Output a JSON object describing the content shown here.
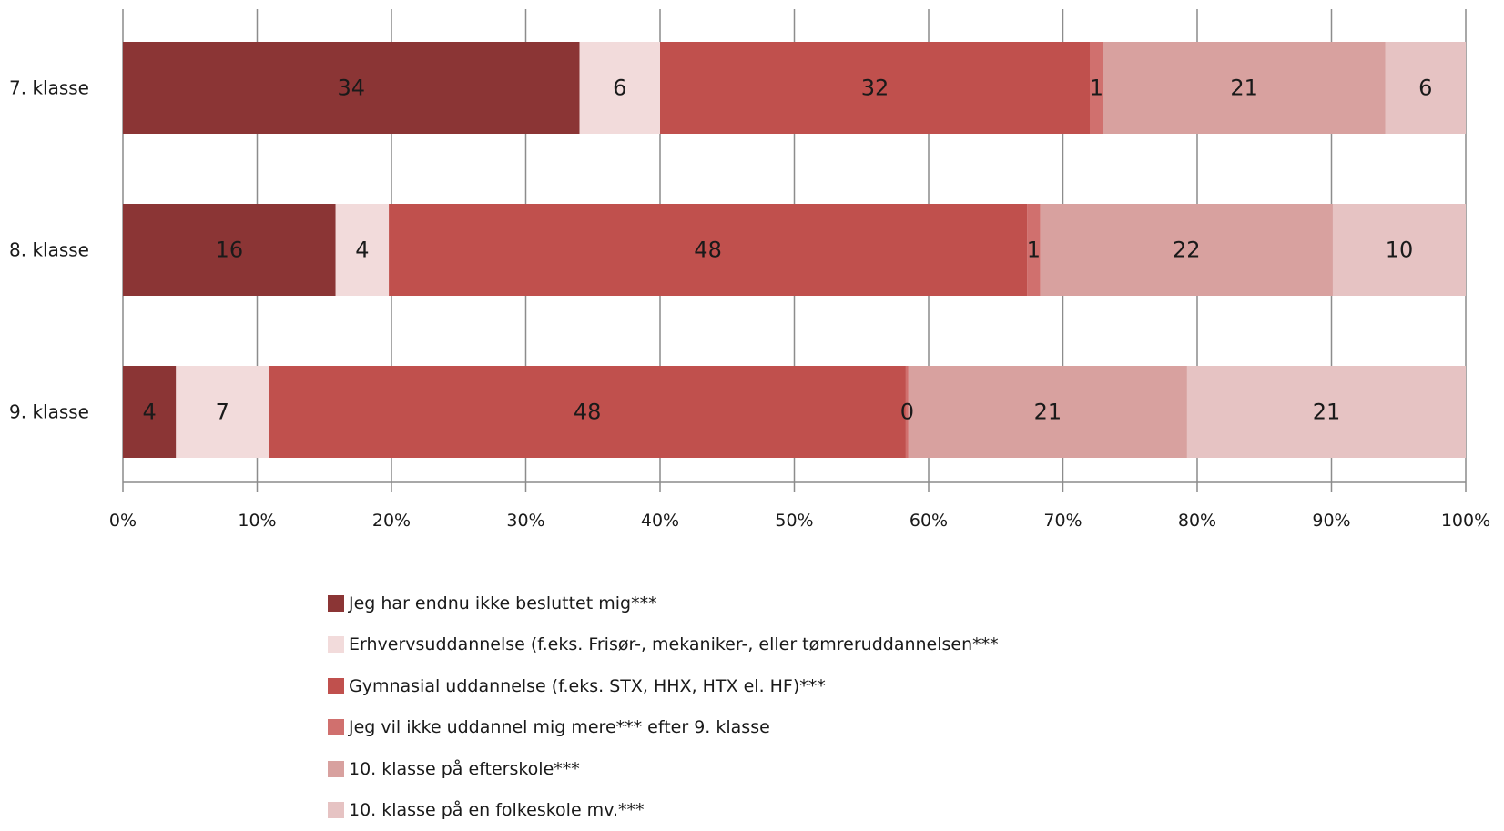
{
  "chart_data": {
    "type": "bar",
    "orientation": "horizontal",
    "stacked": "percent",
    "categories": [
      "7. klasse",
      "8. klasse",
      "9. klasse"
    ],
    "series": [
      {
        "name": "Jeg har endnu ikke besluttet mig***",
        "color": "#8b3535",
        "values": [
          34,
          16,
          4
        ],
        "value_labels": [
          "34",
          "16",
          "4"
        ]
      },
      {
        "name": "Erhvervsuddannelse (f.eks. Frisør-, mekaniker-, eller tømreruddannelsen***",
        "color": "#f2dbdb",
        "values": [
          6,
          4,
          7
        ],
        "value_labels": [
          "6",
          "4",
          "7"
        ]
      },
      {
        "name": "Gymnasial uddannelse (f.eks. STX, HHX, HTX el. HF)***",
        "color": "#c0504d",
        "values": [
          32,
          48,
          48
        ],
        "value_labels": [
          "32",
          "48",
          "48"
        ]
      },
      {
        "name": "Jeg vil ikke uddannel mig mere*** efter 9. klasse",
        "color": "#d0706e",
        "values": [
          1,
          1,
          0.2
        ],
        "value_labels": [
          "1",
          "1",
          "0"
        ]
      },
      {
        "name": "10. klasse på efterskole***",
        "color": "#d8a19f",
        "values": [
          21,
          22,
          21
        ],
        "value_labels": [
          "21",
          "22",
          "21"
        ]
      },
      {
        "name": "10. klasse på en folkeskole mv.***",
        "color": "#e6c3c3",
        "values": [
          6,
          10,
          21
        ],
        "value_labels": [
          "6",
          "10",
          "21"
        ]
      }
    ],
    "x_ticks": [
      "0%",
      "10%",
      "20%",
      "30%",
      "40%",
      "50%",
      "60%",
      "70%",
      "80%",
      "90%",
      "100%"
    ],
    "xlim": [
      0,
      100
    ],
    "grid": "vertical",
    "legend_position": "bottom"
  }
}
